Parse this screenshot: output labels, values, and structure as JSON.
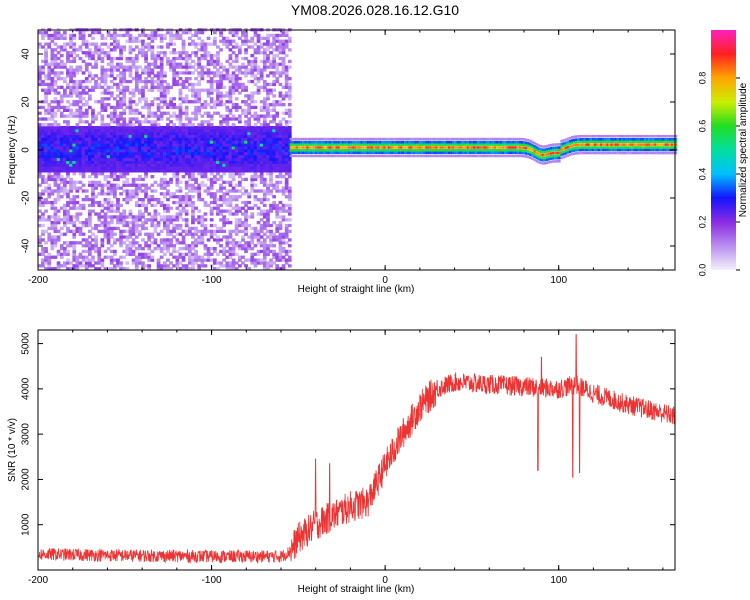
{
  "title": "YM08.2026.028.16.12.G10",
  "chart_data": [
    {
      "type": "heatmap",
      "xlabel": "Height of straight line (km)",
      "ylabel": "Frequency (Hz)",
      "xlim": [
        -200,
        167
      ],
      "ylim": [
        -50,
        50
      ],
      "xticks": [
        -200,
        -100,
        0,
        100
      ],
      "xtick_labels": [
        "-200",
        "-100",
        "0",
        "100"
      ],
      "yticks": [
        -40,
        -20,
        0,
        20,
        40
      ],
      "ytick_labels": [
        "-40",
        "-20",
        "0",
        "20",
        "40"
      ],
      "colorbar": {
        "label": "Normalized spectral amplitude",
        "range": [
          0,
          1
        ],
        "ticks": [
          0.0,
          0.2,
          0.4,
          0.6,
          0.8
        ],
        "tick_labels": [
          "0.0",
          "0.2",
          "0.4",
          "0.6",
          "0.8"
        ],
        "colors": [
          "#f4f0fb",
          "#b98ef0",
          "#8a2be2",
          "#1414ff",
          "#00bfff",
          "#00e0a0",
          "#22dd22",
          "#ccee00",
          "#ffa500",
          "#ff2020",
          "#ff20c0"
        ]
      },
      "regions": [
        {
          "name": "noisy",
          "x_range": [
            -200,
            -55
          ],
          "core_half_width_hz": 7,
          "scatter_half_width_hz": 50
        },
        {
          "name": "tracked",
          "x_range": [
            -55,
            167
          ],
          "line_freq_hz": 1,
          "dips": [
            {
              "x": 90,
              "freq": -2
            },
            {
              "x": 100,
              "freq": -1
            }
          ]
        }
      ]
    },
    {
      "type": "line",
      "xlabel": "Height of straight line (km)",
      "ylabel": "SNR (10 * v/v)",
      "xlim": [
        -200,
        167
      ],
      "ylim": [
        0,
        5300
      ],
      "xticks": [
        -200,
        -100,
        0,
        100
      ],
      "xtick_labels": [
        "-200",
        "-100",
        "0",
        "100"
      ],
      "yticks": [
        1000,
        2000,
        3000,
        4000,
        5000
      ],
      "ytick_labels": [
        "1000",
        "2000",
        "3000",
        "4000",
        "5000"
      ],
      "color": "#ee3333",
      "envelope": [
        {
          "x": -200,
          "y": 350
        },
        {
          "x": -150,
          "y": 320
        },
        {
          "x": -100,
          "y": 300
        },
        {
          "x": -60,
          "y": 300
        },
        {
          "x": -55,
          "y": 400
        },
        {
          "x": -50,
          "y": 700
        },
        {
          "x": -40,
          "y": 1000
        },
        {
          "x": -20,
          "y": 1400
        },
        {
          "x": -10,
          "y": 1500
        },
        {
          "x": 0,
          "y": 2300
        },
        {
          "x": 10,
          "y": 3000
        },
        {
          "x": 20,
          "y": 3600
        },
        {
          "x": 30,
          "y": 4000
        },
        {
          "x": 40,
          "y": 4150
        },
        {
          "x": 60,
          "y": 4100
        },
        {
          "x": 80,
          "y": 4050
        },
        {
          "x": 100,
          "y": 4000
        },
        {
          "x": 110,
          "y": 4100
        },
        {
          "x": 120,
          "y": 3900
        },
        {
          "x": 140,
          "y": 3650
        },
        {
          "x": 167,
          "y": 3400
        }
      ],
      "spikes": [
        {
          "x": -40,
          "y": 2450
        },
        {
          "x": -32,
          "y": 2350
        },
        {
          "x": 88,
          "y": 2200
        },
        {
          "x": 90,
          "y": 4700
        },
        {
          "x": 108,
          "y": 2050
        },
        {
          "x": 110,
          "y": 5200
        },
        {
          "x": 112,
          "y": 2150
        }
      ]
    }
  ]
}
